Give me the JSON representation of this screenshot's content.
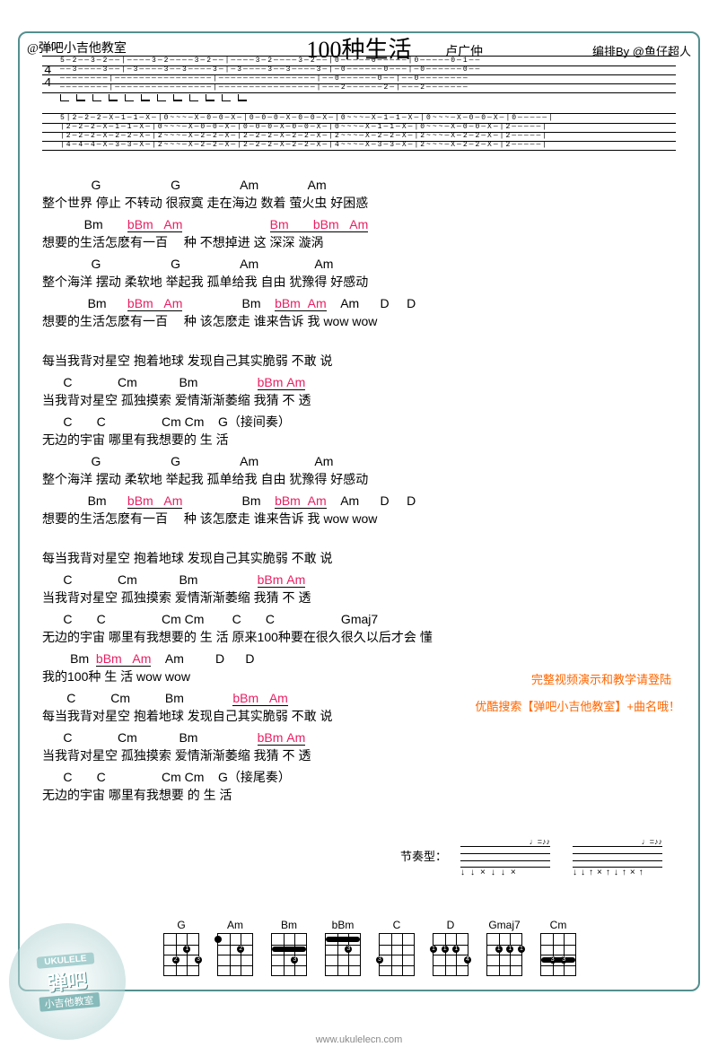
{
  "header": {
    "handle": "@弹吧小吉他教室",
    "title": "100种生活",
    "artist": "卢广仲",
    "credit": "编排By @鱼仔超人"
  },
  "lyrics": [
    {
      "chords": "              G                    G                 Am              Am",
      "text": "整个世界   停止   不转动  很寂寞   走在海边   数着   萤火虫   好困惑"
    },
    {
      "chords": "            Bm       <pink>bBm   Am</pink>                         <pink>Bm       bBm   Am</pink>",
      "text": "想要的生活怎麽有一百　 种                  不想掉进  这  深深  漩涡",
      "und": [
        1,
        2
      ]
    },
    {
      "chords": "              G                    G                 Am                Am",
      "text": "整个海洋   摆动   柔软地   举起我   孤单给我   自由   犹豫得   好感动"
    },
    {
      "chords": "             Bm      <pink>bBm   Am</pink>                 Bm    <pink>bBm  Am</pink>    Am      D     D",
      "text": "想要的生活怎麽有一百　 种          该怎麽走   谁来告诉 我         wow  wow",
      "und": [
        1,
        2
      ]
    },
    {
      "chords": "",
      "text": "每当我背对星空   抱着地球   发现自己其实脆弱  不敢  说"
    },
    {
      "chords": "      C             Cm            Bm                 <pink>bBm Am</pink>",
      "text": "当我背对星空   孤独摸索   爱情渐渐萎缩    我猜  不    透",
      "und": [
        3
      ]
    },
    {
      "chords": "      C       C                Cm Cm    G（接间奏）",
      "text": "无边的宇宙   哪里有我想要的  生  活"
    },
    {
      "chords": "              G                    G                 Am                Am",
      "text": "整个海洋   摆动   柔软地   举起我   孤单给我   自由   犹豫得   好感动"
    },
    {
      "chords": "             Bm      <pink>bBm   Am</pink>                 Bm    <pink>bBm  Am</pink>    Am      D     D",
      "text": "想要的生活怎麽有一百　 种          该怎麽走   谁来告诉 我         wow  wow",
      "und": [
        1,
        2
      ]
    },
    {
      "chords": "",
      "text": "每当我背对星空   抱着地球   发现自己其实脆弱   不敢  说"
    },
    {
      "chords": "      C             Cm            Bm                 <pink>bBm Am</pink>",
      "text": "当我背对星空   孤独摸索   爱情渐渐萎缩    我猜  不    透",
      "und": [
        3
      ]
    },
    {
      "chords": "      C       C                Cm Cm        C       C                   Gmaj7",
      "text": "无边的宇宙   哪里有我想要的  生  活       原来100种要在很久很久以后才会  懂"
    },
    {
      "chords": "        Bm  <pink>bBm   Am</pink>    Am         D      D",
      "text": "我的100种   生    活         wow  wow",
      "und": [
        1
      ]
    },
    {
      "chords": "       C          Cm          Bm              <pink>bBm   Am</pink>",
      "text": "每当我背对星空   抱着地球   发现自己其实脆弱   不敢  说",
      "und": [
        3
      ]
    },
    {
      "chords": "      C             Cm            Bm                 <pink>bBm Am</pink>",
      "text": "当我背对星空   孤独摸索   爱情渐渐萎缩    我猜  不    透",
      "und": [
        3
      ]
    },
    {
      "chords": "      C       C                Cm Cm    G（接尾奏）",
      "text": "无边的宇宙   哪里有我想要  的  生  活"
    }
  ],
  "notes": {
    "line1": "完整视频演示和教学请登陆",
    "line2": "优酷搜索【弹吧小吉他教室】+曲名哦！"
  },
  "rhythm_label": "节奏型：",
  "chord_diagrams": [
    "G",
    "Am",
    "Bm",
    "bBm",
    "C",
    "D",
    "Gmaj7",
    "Cm"
  ],
  "logo": {
    "top": "UKULELE",
    "mid": "弹吧",
    "bot": "小吉他教室"
  },
  "website": "www.ukulelecn.com",
  "colors": {
    "accent": "#548f8f",
    "pink": "#e91e63",
    "orange": "#ff6600"
  }
}
